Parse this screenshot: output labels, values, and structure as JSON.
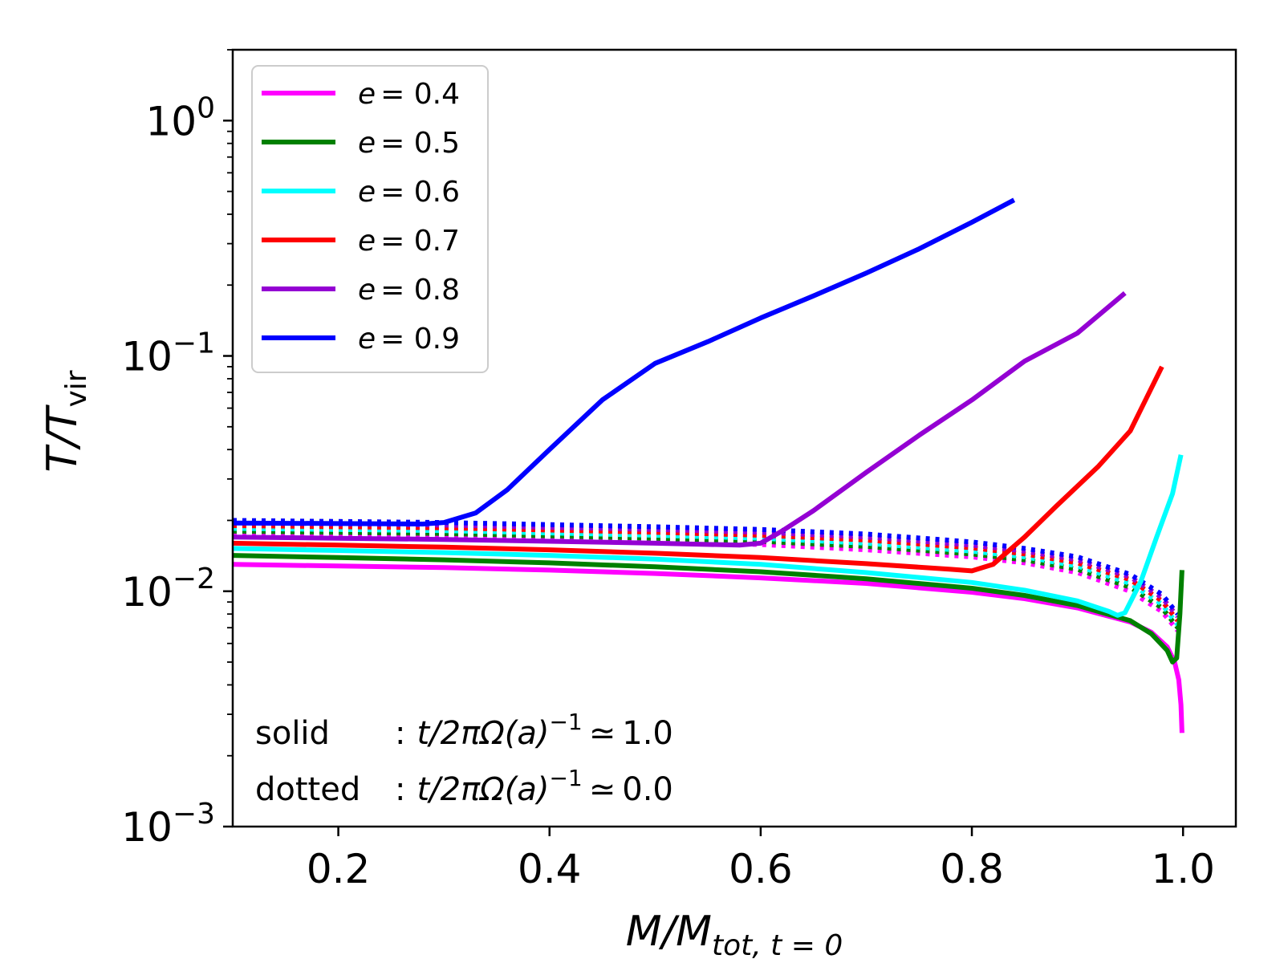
{
  "chart_data": {
    "type": "line",
    "x_scale": "linear",
    "y_scale": "log",
    "xlim": [
      0.1,
      1.05
    ],
    "ylim": [
      0.001,
      2.0
    ],
    "xticks": [
      {
        "value": 0.2,
        "label": "0.2"
      },
      {
        "value": 0.4,
        "label": "0.4"
      },
      {
        "value": 0.6,
        "label": "0.6"
      },
      {
        "value": 0.8,
        "label": "0.8"
      },
      {
        "value": 1.0,
        "label": "1.0"
      }
    ],
    "yticks": [
      {
        "value": 1,
        "base": "10",
        "exp": "0"
      },
      {
        "value": 0.1,
        "base": "10",
        "exp": "−1"
      },
      {
        "value": 0.01,
        "base": "10",
        "exp": "−2"
      },
      {
        "value": 0.001,
        "base": "10",
        "exp": "−3"
      }
    ],
    "xlabel": {
      "main": "M/M",
      "sub": "tot, t = 0"
    },
    "ylabel": {
      "main": "T/T",
      "sub": "vir"
    },
    "legend_position": "upper-left",
    "annotations": {
      "solid_key": "solid",
      "dotted_key": "dotted",
      "sep": ":",
      "t_expr": "t/2πΩ(a)",
      "exp": "−1",
      "approx": "≃",
      "solid_val": "1.0",
      "dotted_val": "0.0"
    },
    "series": [
      {
        "name": "e = 0.4",
        "e_var": "e",
        "e_val": "= 0.4",
        "color": "#ff00ff",
        "solid": [
          [
            0.1,
            0.013
          ],
          [
            0.2,
            0.0128
          ],
          [
            0.3,
            0.0126
          ],
          [
            0.4,
            0.0123
          ],
          [
            0.5,
            0.0119
          ],
          [
            0.6,
            0.0114
          ],
          [
            0.7,
            0.0108
          ],
          [
            0.8,
            0.0099
          ],
          [
            0.85,
            0.0093
          ],
          [
            0.9,
            0.0085
          ],
          [
            0.95,
            0.0074
          ],
          [
            0.97,
            0.0067
          ],
          [
            0.985,
            0.0058
          ],
          [
            0.992,
            0.005
          ],
          [
            0.996,
            0.0042
          ],
          [
            0.998,
            0.0033
          ],
          [
            0.999,
            0.0025
          ]
        ],
        "dotted": [
          [
            0.1,
            0.0175
          ],
          [
            0.3,
            0.017
          ],
          [
            0.5,
            0.0163
          ],
          [
            0.6,
            0.0158
          ],
          [
            0.7,
            0.015
          ],
          [
            0.8,
            0.014
          ],
          [
            0.85,
            0.0132
          ],
          [
            0.9,
            0.012
          ],
          [
            0.95,
            0.01
          ],
          [
            0.98,
            0.0082
          ],
          [
            0.995,
            0.0068
          ]
        ]
      },
      {
        "name": "e = 0.5",
        "e_var": "e",
        "e_val": "= 0.5",
        "color": "#008000",
        "solid": [
          [
            0.1,
            0.0142
          ],
          [
            0.2,
            0.0139
          ],
          [
            0.3,
            0.0136
          ],
          [
            0.4,
            0.0132
          ],
          [
            0.5,
            0.0127
          ],
          [
            0.6,
            0.0121
          ],
          [
            0.7,
            0.0113
          ],
          [
            0.8,
            0.0103
          ],
          [
            0.85,
            0.0096
          ],
          [
            0.9,
            0.0087
          ],
          [
            0.95,
            0.0075
          ],
          [
            0.97,
            0.0066
          ],
          [
            0.985,
            0.0056
          ],
          [
            0.99,
            0.005
          ],
          [
            0.994,
            0.0052
          ],
          [
            0.997,
            0.008
          ],
          [
            0.999,
            0.0123
          ]
        ],
        "dotted": [
          [
            0.1,
            0.018
          ],
          [
            0.3,
            0.0176
          ],
          [
            0.5,
            0.0168
          ],
          [
            0.6,
            0.0163
          ],
          [
            0.7,
            0.0155
          ],
          [
            0.8,
            0.0144
          ],
          [
            0.85,
            0.0136
          ],
          [
            0.9,
            0.0124
          ],
          [
            0.95,
            0.0104
          ],
          [
            0.98,
            0.0085
          ],
          [
            0.995,
            0.007
          ]
        ]
      },
      {
        "name": "e = 0.6",
        "e_var": "e",
        "e_val": "= 0.6",
        "color": "#00ffff",
        "solid": [
          [
            0.1,
            0.0152
          ],
          [
            0.2,
            0.0149
          ],
          [
            0.3,
            0.0146
          ],
          [
            0.4,
            0.0142
          ],
          [
            0.5,
            0.0137
          ],
          [
            0.6,
            0.013
          ],
          [
            0.7,
            0.012
          ],
          [
            0.8,
            0.0109
          ],
          [
            0.85,
            0.0101
          ],
          [
            0.9,
            0.0091
          ],
          [
            0.93,
            0.0082
          ],
          [
            0.938,
            0.0079
          ],
          [
            0.945,
            0.0081
          ],
          [
            0.96,
            0.011
          ],
          [
            0.975,
            0.017
          ],
          [
            0.99,
            0.026
          ],
          [
            0.998,
            0.038
          ]
        ],
        "dotted": [
          [
            0.1,
            0.0185
          ],
          [
            0.3,
            0.0181
          ],
          [
            0.5,
            0.0173
          ],
          [
            0.6,
            0.0168
          ],
          [
            0.7,
            0.016
          ],
          [
            0.8,
            0.0148
          ],
          [
            0.85,
            0.014
          ],
          [
            0.9,
            0.0128
          ],
          [
            0.95,
            0.0108
          ],
          [
            0.98,
            0.0088
          ],
          [
            0.995,
            0.0072
          ]
        ]
      },
      {
        "name": "e = 0.7",
        "e_var": "e",
        "e_val": "= 0.7",
        "color": "#ff0000",
        "solid": [
          [
            0.1,
            0.016
          ],
          [
            0.2,
            0.0157
          ],
          [
            0.3,
            0.0154
          ],
          [
            0.4,
            0.015
          ],
          [
            0.5,
            0.0145
          ],
          [
            0.6,
            0.0139
          ],
          [
            0.7,
            0.0131
          ],
          [
            0.78,
            0.0124
          ],
          [
            0.8,
            0.0122
          ],
          [
            0.82,
            0.013
          ],
          [
            0.85,
            0.017
          ],
          [
            0.88,
            0.023
          ],
          [
            0.92,
            0.034
          ],
          [
            0.95,
            0.048
          ],
          [
            0.98,
            0.09
          ]
        ],
        "dotted": [
          [
            0.1,
            0.019
          ],
          [
            0.3,
            0.0186
          ],
          [
            0.5,
            0.0178
          ],
          [
            0.6,
            0.0173
          ],
          [
            0.7,
            0.0165
          ],
          [
            0.8,
            0.0153
          ],
          [
            0.85,
            0.0144
          ],
          [
            0.9,
            0.0132
          ],
          [
            0.95,
            0.0112
          ],
          [
            0.98,
            0.0091
          ],
          [
            0.995,
            0.0075
          ]
        ]
      },
      {
        "name": "e = 0.8",
        "e_var": "e",
        "e_val": "= 0.8",
        "color": "#9400d3",
        "solid": [
          [
            0.1,
            0.017
          ],
          [
            0.2,
            0.0168
          ],
          [
            0.3,
            0.0166
          ],
          [
            0.4,
            0.0163
          ],
          [
            0.5,
            0.016
          ],
          [
            0.58,
            0.0157
          ],
          [
            0.6,
            0.016
          ],
          [
            0.62,
            0.018
          ],
          [
            0.65,
            0.022
          ],
          [
            0.7,
            0.032
          ],
          [
            0.75,
            0.046
          ],
          [
            0.8,
            0.065
          ],
          [
            0.85,
            0.095
          ],
          [
            0.9,
            0.125
          ],
          [
            0.945,
            0.185
          ]
        ],
        "dotted": [
          [
            0.1,
            0.0195
          ],
          [
            0.3,
            0.0191
          ],
          [
            0.5,
            0.0183
          ],
          [
            0.6,
            0.0178
          ],
          [
            0.7,
            0.017
          ],
          [
            0.8,
            0.0157
          ],
          [
            0.85,
            0.0148
          ],
          [
            0.9,
            0.0136
          ],
          [
            0.95,
            0.0115
          ],
          [
            0.98,
            0.0094
          ],
          [
            0.995,
            0.0078
          ]
        ]
      },
      {
        "name": "e = 0.9",
        "e_var": "e",
        "e_val": "= 0.9",
        "color": "#0000ff",
        "solid": [
          [
            0.1,
            0.0195
          ],
          [
            0.2,
            0.0194
          ],
          [
            0.28,
            0.0193
          ],
          [
            0.3,
            0.0196
          ],
          [
            0.33,
            0.0215
          ],
          [
            0.36,
            0.027
          ],
          [
            0.4,
            0.04
          ],
          [
            0.45,
            0.065
          ],
          [
            0.5,
            0.093
          ],
          [
            0.55,
            0.115
          ],
          [
            0.6,
            0.145
          ],
          [
            0.65,
            0.18
          ],
          [
            0.7,
            0.225
          ],
          [
            0.75,
            0.285
          ],
          [
            0.8,
            0.37
          ],
          [
            0.84,
            0.46
          ]
        ],
        "dotted": [
          [
            0.1,
            0.02
          ],
          [
            0.3,
            0.0196
          ],
          [
            0.5,
            0.0188
          ],
          [
            0.6,
            0.0183
          ],
          [
            0.7,
            0.0175
          ],
          [
            0.8,
            0.0162
          ],
          [
            0.85,
            0.0152
          ],
          [
            0.9,
            0.014
          ],
          [
            0.95,
            0.0118
          ],
          [
            0.98,
            0.0097
          ],
          [
            0.995,
            0.008
          ]
        ]
      }
    ]
  }
}
